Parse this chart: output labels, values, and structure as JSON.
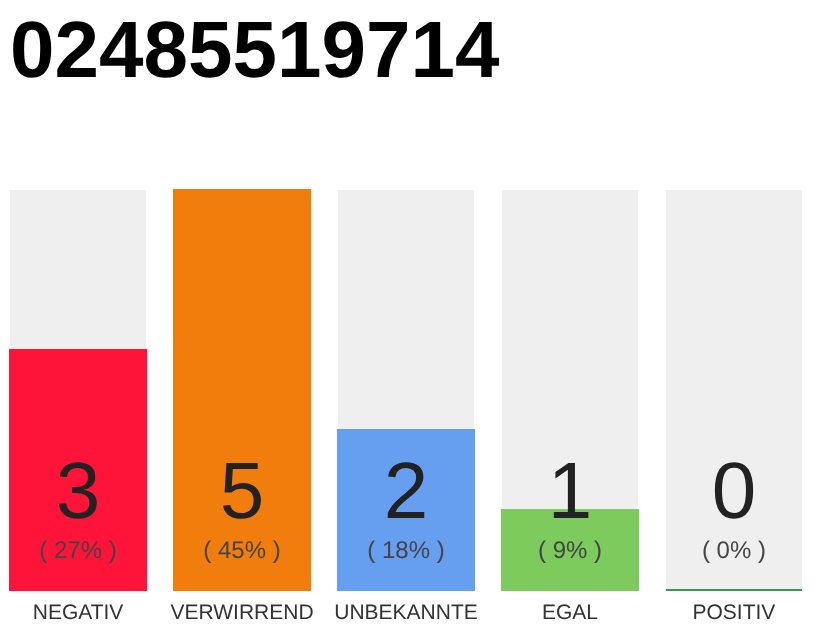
{
  "chart_data": {
    "type": "bar",
    "title": "02485519714",
    "categories": [
      "NEGATIV",
      "VERWIRREND",
      "UNBEKANNTE",
      "EGAL",
      "POSITIV"
    ],
    "values": [
      3,
      5,
      2,
      1,
      0
    ],
    "colors": [
      "#ff1439",
      "#f07d0c",
      "#669ff0",
      "#7ccb5c",
      "#2ea04a"
    ],
    "data_labels": true,
    "tick_labels": "x",
    "annotations": [
      "( 27% )",
      "( 45% )",
      "( 18% )",
      "( 9% )",
      "( 0% )"
    ]
  }
}
